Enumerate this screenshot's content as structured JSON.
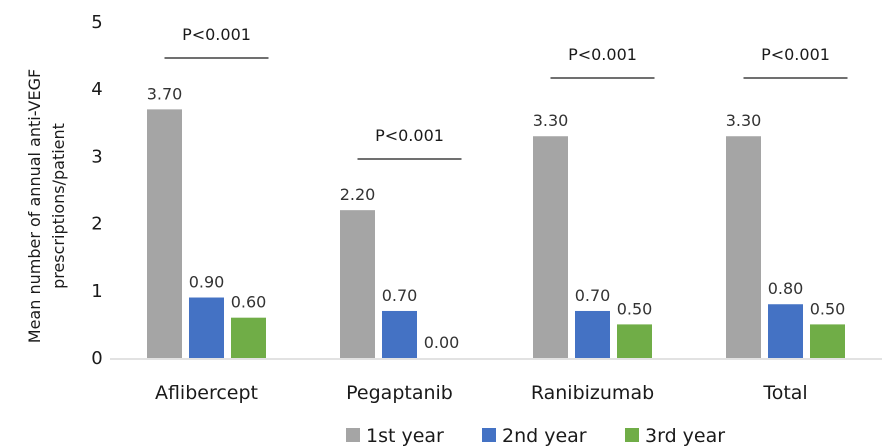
{
  "chart_data": {
    "type": "bar",
    "categories": [
      "Aflibercept",
      "Pegaptanib",
      "Ranibizumab",
      "Total"
    ],
    "series": [
      {
        "name": "1st year",
        "values": [
          3.7,
          2.2,
          3.3,
          3.3
        ],
        "labels": [
          "3.70",
          "2.20",
          "3.30",
          "3.30"
        ],
        "color": "#a5a5a5"
      },
      {
        "name": "2nd year",
        "values": [
          0.9,
          0.7,
          0.7,
          0.8
        ],
        "labels": [
          "0.90",
          "0.70",
          "0.70",
          "0.80"
        ],
        "color": "#4472c4"
      },
      {
        "name": "3rd year",
        "values": [
          0.6,
          0.0,
          0.5,
          0.5
        ],
        "labels": [
          "0.60",
          "0.00",
          "0.50",
          "0.50"
        ],
        "color": "#70ad47"
      }
    ],
    "ylabel": [
      "Mean number of annual anti-VEGF",
      "prescriptions/patient"
    ],
    "ylim": [
      0,
      5
    ],
    "yticks": [
      "0",
      "1",
      "2",
      "3",
      "4",
      "5"
    ],
    "annotations": [
      "P<0.001",
      "P<0.001",
      "P<0.001",
      "P<0.001"
    ],
    "grid": false,
    "legend_position": "bottom"
  }
}
